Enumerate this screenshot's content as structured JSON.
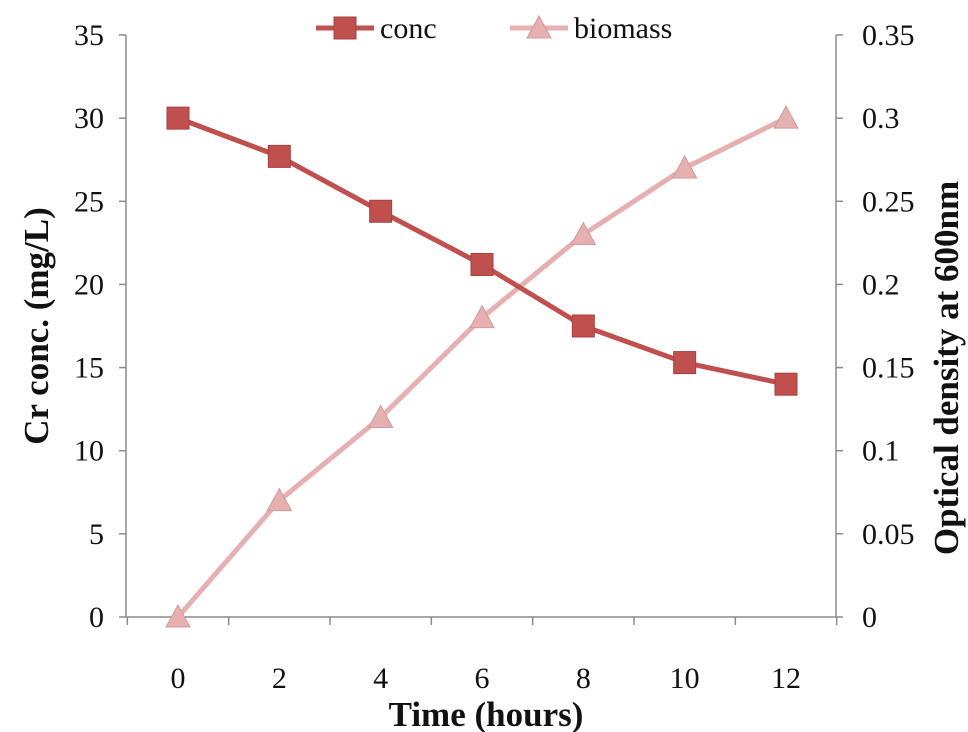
{
  "chart_data": {
    "type": "line",
    "title": "",
    "xlabel": "Time (hours)",
    "ylabel_left": "Cr conc. (mg/L)",
    "ylabel_right": "Optical density at 600nm",
    "x": [
      0,
      2,
      4,
      6,
      8,
      10,
      12
    ],
    "x_ticks": [
      "0",
      "2",
      "4",
      "6",
      "8",
      "10",
      "12"
    ],
    "y_left_ticks": [
      "0",
      "5",
      "10",
      "15",
      "20",
      "25",
      "30",
      "35"
    ],
    "y_right_ticks": [
      "0",
      "0.05",
      "0.1",
      "0.15",
      "0.2",
      "0.25",
      "0.3",
      "0.35"
    ],
    "ylim_left": [
      0,
      35
    ],
    "ylim_right": [
      0,
      0.35
    ],
    "grid": false,
    "legend_position": "top",
    "series": [
      {
        "name": "conc",
        "axis": "left",
        "marker": "square",
        "color": "#C0504D",
        "values": [
          30,
          27.7,
          24.4,
          21.2,
          17.5,
          15.3,
          14
        ]
      },
      {
        "name": "biomass",
        "axis": "right",
        "marker": "triangle",
        "color": "#E6B0B0",
        "values": [
          0,
          0.07,
          0.12,
          0.18,
          0.23,
          0.27,
          0.3
        ]
      }
    ]
  }
}
